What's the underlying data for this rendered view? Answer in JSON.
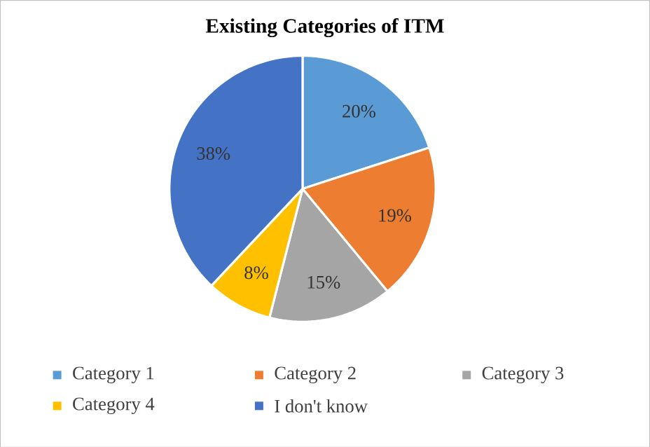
{
  "chart_data": {
    "type": "pie",
    "title": "Existing Categories of ITM",
    "categories": [
      "Category 1",
      "Category 2",
      "Category 3",
      "Category 4",
      "I don't know"
    ],
    "values": [
      20,
      19,
      15,
      8,
      38
    ],
    "value_labels": [
      "20%",
      "19%",
      "15%",
      "8%",
      "38%"
    ],
    "colors": [
      "#5b9bd5",
      "#ed7d31",
      "#a5a5a5",
      "#ffc000",
      "#4472c4"
    ],
    "legend": "bottom"
  }
}
